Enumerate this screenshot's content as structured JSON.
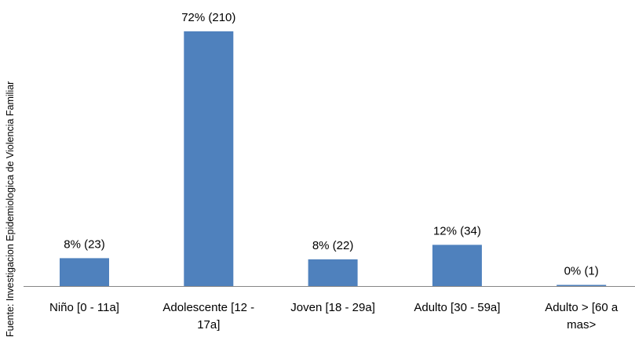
{
  "chart_data": {
    "type": "bar",
    "categories": [
      "Niño  [0 - 11a]",
      "Adolescente [12 - 17a]",
      "Joven [18 - 29a]",
      "Adulto [30 - 59a]",
      "Adulto >  [60 a mas>"
    ],
    "category_lines": [
      [
        "Niño  [0 - 11a]"
      ],
      [
        "Adolescente [12 -",
        "17a]"
      ],
      [
        "Joven [18 - 29a]"
      ],
      [
        "Adulto [30 - 59a]"
      ],
      [
        "Adulto >  [60 a",
        "mas>"
      ]
    ],
    "values": [
      23,
      210,
      22,
      34,
      1
    ],
    "data_labels": [
      "8% (23)",
      "72% (210)",
      "8% (22)",
      "12% (34)",
      "0% (1)"
    ],
    "source_note": "Fuente: Investigacion  Epidemiologica  de Violencia Familiar",
    "ylim": [
      0,
      230
    ],
    "grid": false,
    "bar_color": "#4f81bd",
    "axis_color": "#868686"
  }
}
